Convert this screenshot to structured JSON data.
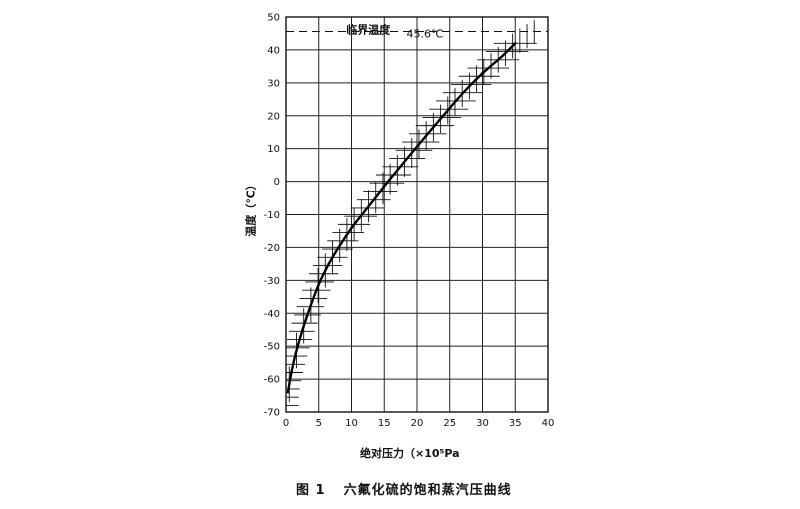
{
  "chart_data": {
    "type": "line",
    "title": "六氟化硫的饱和蒸汽压曲线",
    "figure_label": "图 1",
    "xlabel": "绝对压力（×10⁵Pa",
    "ylabel": "温度（℃）",
    "xlim": [
      0,
      40
    ],
    "ylim": [
      -70,
      50
    ],
    "x_ticks": [
      0,
      5,
      10,
      15,
      20,
      25,
      30,
      35,
      40
    ],
    "y_ticks": [
      -70,
      -60,
      -50,
      -40,
      -30,
      -20,
      -10,
      0,
      10,
      20,
      30,
      40,
      50
    ],
    "grid": true,
    "series": [
      {
        "x": [
          0.3,
          0.8,
          1.5,
          2.5,
          3.7,
          5.0,
          6.5,
          8.0,
          10.0,
          12.0,
          14.0,
          16.0,
          18.5,
          21.0,
          24.0,
          27.0,
          30.0,
          33.0,
          35.0
        ],
        "y": [
          -64,
          -58,
          -52,
          -45,
          -38,
          -31,
          -25,
          -20,
          -14,
          -9,
          -4,
          1,
          7,
          13,
          20,
          27,
          33,
          38,
          42
        ]
      }
    ],
    "annotations": {
      "critical_label": "临界温度",
      "critical_value": "45.6℃",
      "critical_temperature": 45.6
    }
  }
}
